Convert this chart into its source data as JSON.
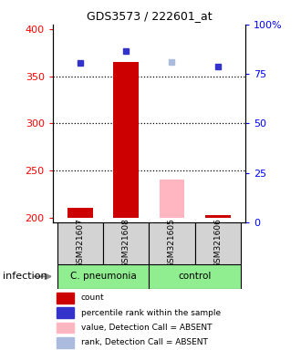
{
  "title": "GDS3573 / 222601_at",
  "samples": [
    "GSM321607",
    "GSM321608",
    "GSM321605",
    "GSM321606"
  ],
  "bar_values": [
    210,
    365,
    240,
    203
  ],
  "bar_colors": [
    "#cc0000",
    "#cc0000",
    "#FFB6C1",
    "#cc0000"
  ],
  "rank_values": [
    364,
    377,
    365,
    360
  ],
  "rank_colors": [
    "#3333cc",
    "#3333cc",
    "#aabbdd",
    "#3333cc"
  ],
  "ylim_left": [
    195,
    405
  ],
  "ylim_right": [
    0,
    100
  ],
  "yticks_left": [
    200,
    250,
    300,
    350,
    400
  ],
  "yticks_right": [
    0,
    25,
    50,
    75,
    100
  ],
  "ytick_right_labels": [
    "0",
    "25",
    "50",
    "75",
    "100%"
  ],
  "dotted_lines": [
    250,
    300,
    350
  ],
  "bar_bottom": 200,
  "bar_width": 0.55,
  "sample_box_color": "#d3d3d3",
  "group_green": "#90EE90",
  "legend_items": [
    {
      "label": "count",
      "color": "#cc0000"
    },
    {
      "label": "percentile rank within the sample",
      "color": "#3333cc"
    },
    {
      "label": "value, Detection Call = ABSENT",
      "color": "#FFB6C1"
    },
    {
      "label": "rank, Detection Call = ABSENT",
      "color": "#aabbdd"
    }
  ],
  "infection_label": "infection"
}
